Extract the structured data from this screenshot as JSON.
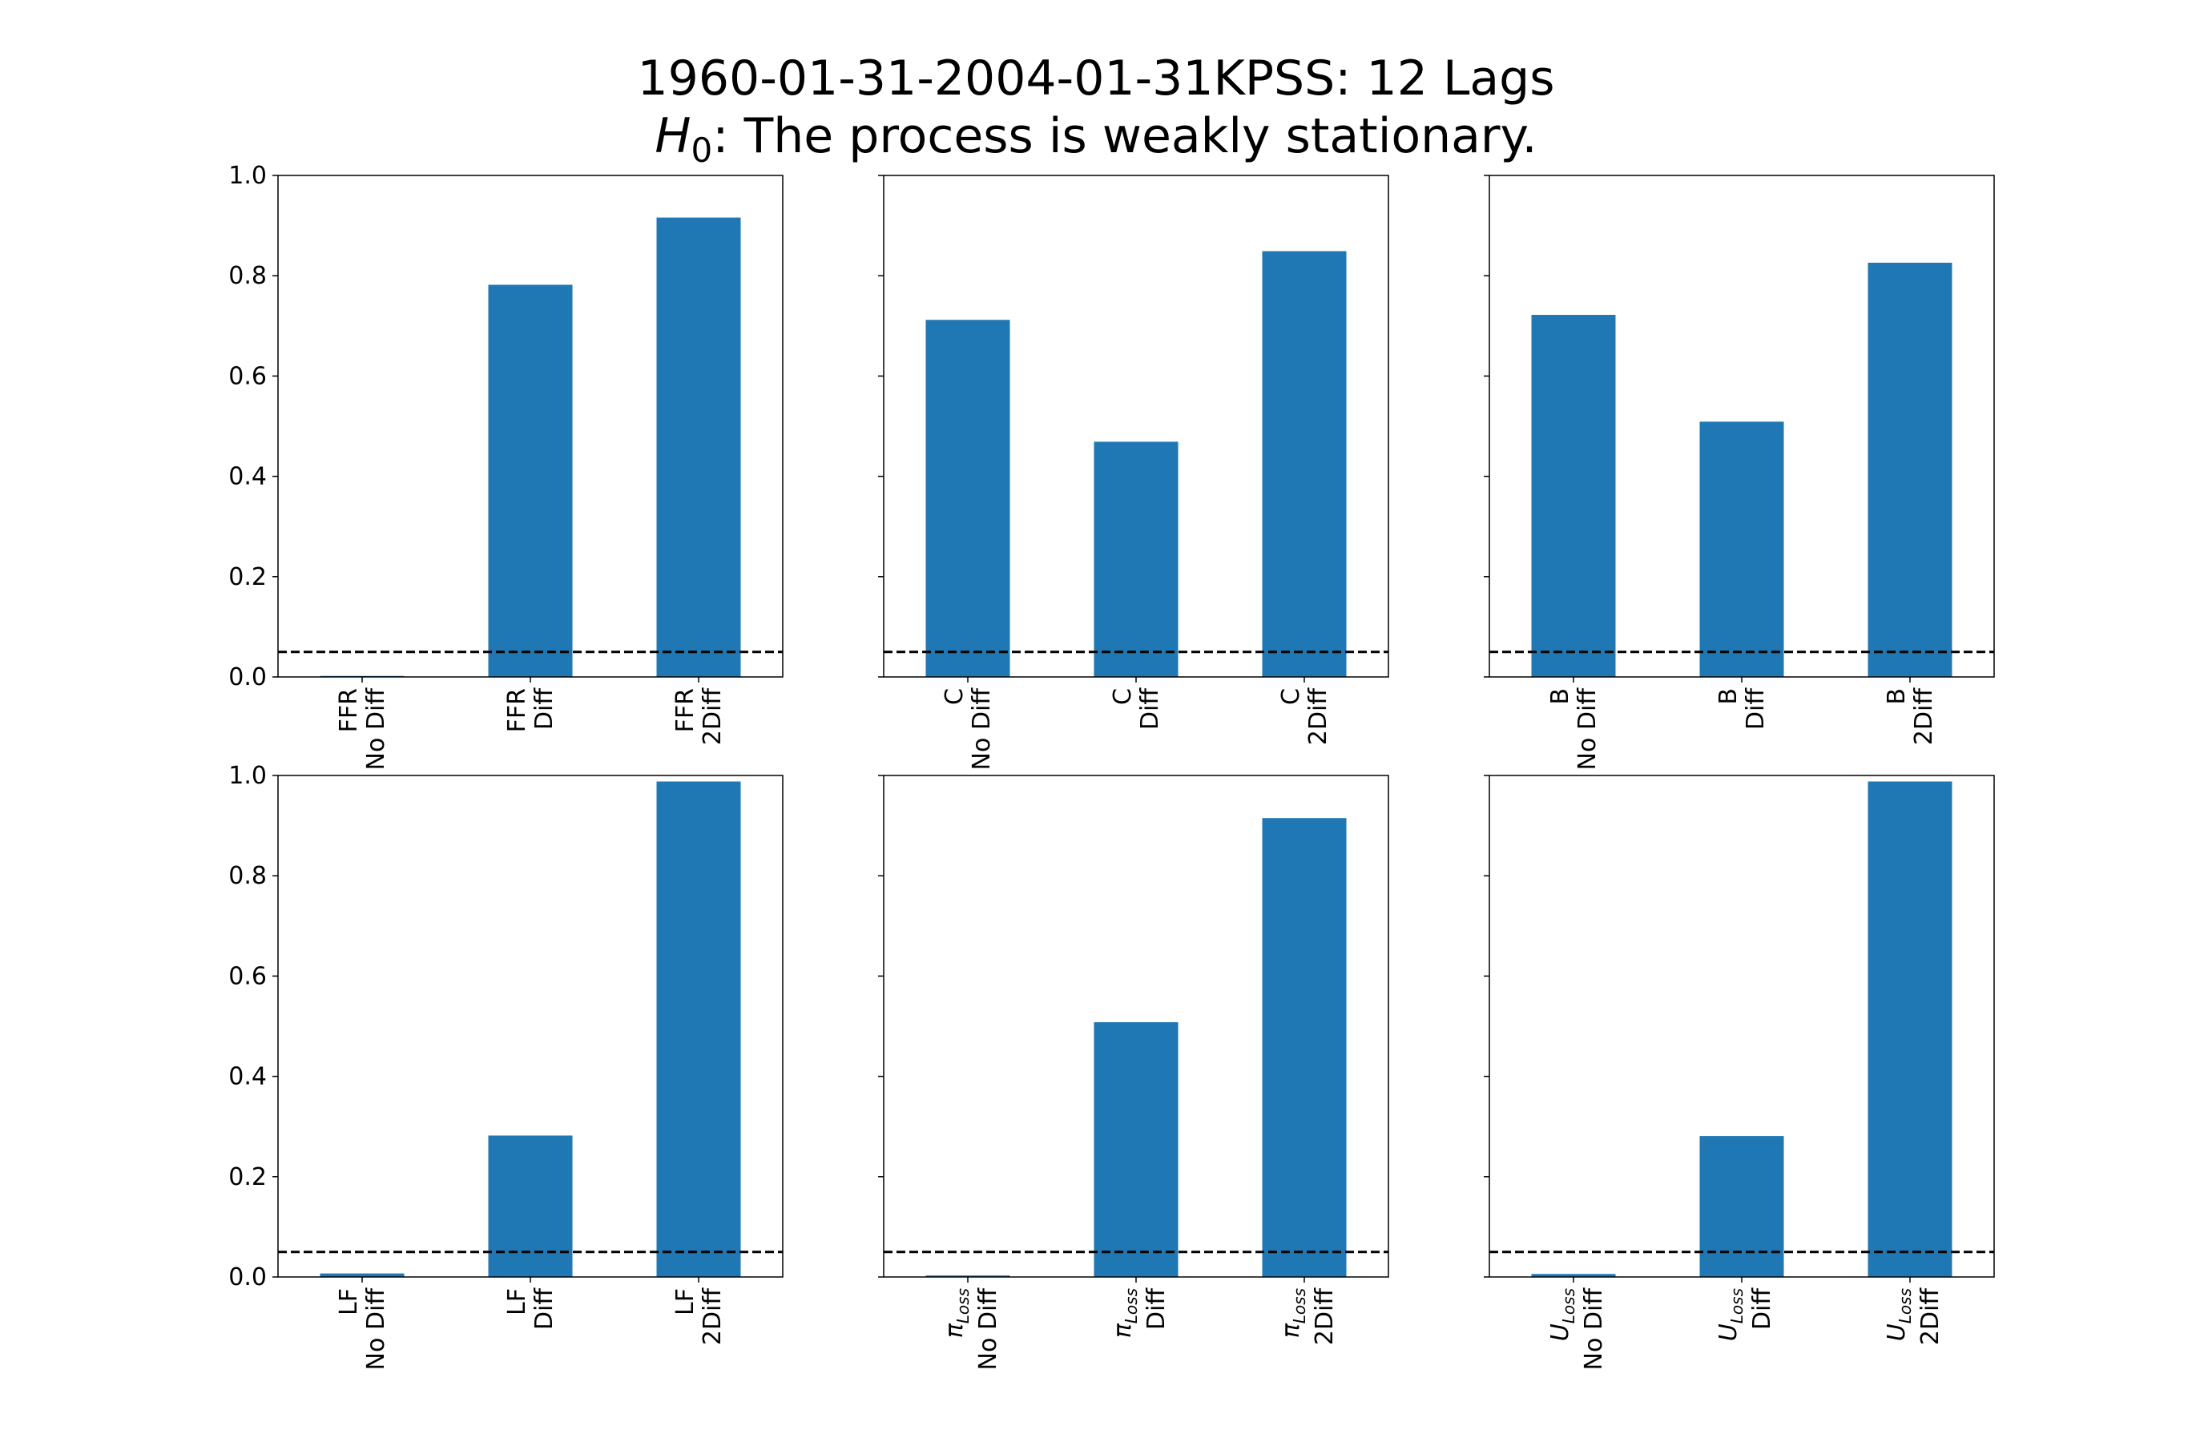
{
  "figure": {
    "title_line1": "1960-01-31-2004-01-31KPSS: 12 Lags",
    "title_line2_math_var": "H",
    "title_line2_math_sub": "0",
    "title_line2_text": ":  The process is weakly stationary."
  },
  "chart_data": [
    {
      "type": "bar",
      "categories": [
        "FFR\nNo Diff",
        "FFR\nDiff",
        "FFR\n2Diff"
      ],
      "values": [
        0.002,
        0.782,
        0.916
      ],
      "ylim": [
        0,
        1.0
      ],
      "yticks": [
        "0.0",
        "0.2",
        "0.4",
        "0.6",
        "0.8",
        "1.0"
      ],
      "show_ytick_labels": true,
      "reference_line": 0.05,
      "color": "#1f77b4"
    },
    {
      "type": "bar",
      "categories": [
        "C\nNo Diff",
        "C\nDiff",
        "C\n2Diff"
      ],
      "values": [
        0.712,
        0.469,
        0.849
      ],
      "ylim": [
        0,
        1.0
      ],
      "yticks": [
        "0.0",
        "0.2",
        "0.4",
        "0.6",
        "0.8",
        "1.0"
      ],
      "show_ytick_labels": false,
      "reference_line": 0.05,
      "color": "#1f77b4"
    },
    {
      "type": "bar",
      "categories": [
        "B\nNo Diff",
        "B\nDiff",
        "B\n2Diff"
      ],
      "values": [
        0.722,
        0.509,
        0.826
      ],
      "ylim": [
        0,
        1.0
      ],
      "yticks": [
        "0.0",
        "0.2",
        "0.4",
        "0.6",
        "0.8",
        "1.0"
      ],
      "show_ytick_labels": false,
      "reference_line": 0.05,
      "color": "#1f77b4"
    },
    {
      "type": "bar",
      "categories": [
        "LF\nNo Diff",
        "LF\nDiff",
        "LF\n2Diff"
      ],
      "values": [
        0.007,
        0.282,
        0.988
      ],
      "ylim": [
        0,
        1.0
      ],
      "yticks": [
        "0.0",
        "0.2",
        "0.4",
        "0.6",
        "0.8",
        "1.0"
      ],
      "show_ytick_labels": true,
      "reference_line": 0.05,
      "color": "#1f77b4"
    },
    {
      "type": "bar",
      "categories": [
        "π_Loss\nNo Diff",
        "π_Loss\nDiff",
        "π_Loss\n2Diff"
      ],
      "values": [
        0.003,
        0.508,
        0.915
      ],
      "ylim": [
        0,
        1.0
      ],
      "yticks": [
        "0.0",
        "0.2",
        "0.4",
        "0.6",
        "0.8",
        "1.0"
      ],
      "show_ytick_labels": false,
      "reference_line": 0.05,
      "color": "#1f77b4"
    },
    {
      "type": "bar",
      "categories": [
        "U_Loss\nNo Diff",
        "U_Loss\nDiff",
        "U_Loss\n2Diff"
      ],
      "values": [
        0.006,
        0.281,
        0.988
      ],
      "ylim": [
        0,
        1.0
      ],
      "yticks": [
        "0.0",
        "0.2",
        "0.4",
        "0.6",
        "0.8",
        "1.0"
      ],
      "show_ytick_labels": false,
      "reference_line": 0.05,
      "color": "#1f77b4"
    }
  ]
}
